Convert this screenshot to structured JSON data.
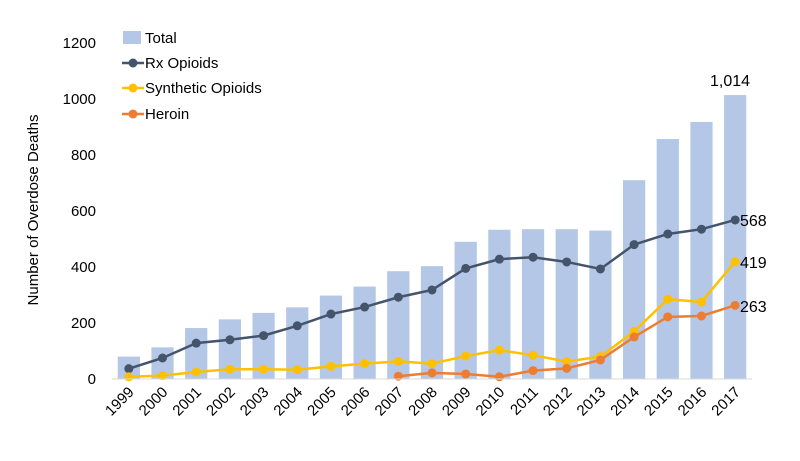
{
  "chart_data": {
    "type": "bar",
    "ylabel": "Number of Overdose Deaths",
    "ylim": [
      0,
      1200
    ],
    "yticks": [
      "0",
      "200",
      "400",
      "600",
      "800",
      "1000",
      "1200"
    ],
    "grid": false,
    "legend_position": "top-left",
    "categories": [
      "1999",
      "2000",
      "2001",
      "2002",
      "2003",
      "2004",
      "2005",
      "2006",
      "2007",
      "2008",
      "2009",
      "2010",
      "2011",
      "2012",
      "2013",
      "2014",
      "2015",
      "2016",
      "2017"
    ],
    "bar_series": {
      "name": "Total",
      "color": "#b4c7e7",
      "values": [
        80,
        113,
        182,
        213,
        236,
        256,
        298,
        330,
        385,
        403,
        490,
        533,
        535,
        535,
        530,
        710,
        857,
        918,
        1014
      ]
    },
    "line_series": [
      {
        "name": "Rx Opioids",
        "color": "#44546a",
        "values": [
          37,
          75,
          128,
          140,
          155,
          190,
          232,
          257,
          292,
          318,
          395,
          428,
          435,
          418,
          393,
          480,
          518,
          535,
          568
        ]
      },
      {
        "name": "Synthetic Opioids",
        "color": "#ffc000",
        "values": [
          8,
          12,
          25,
          35,
          35,
          33,
          45,
          55,
          63,
          55,
          82,
          103,
          85,
          62,
          80,
          170,
          285,
          275,
          419
        ]
      },
      {
        "name": "Heroin",
        "color": "#ed7d31",
        "values": [
          null,
          null,
          null,
          null,
          null,
          null,
          null,
          null,
          10,
          22,
          18,
          8,
          30,
          38,
          68,
          150,
          222,
          225,
          263
        ]
      }
    ],
    "data_labels": {
      "total_2017": "1,014",
      "rx_2017": "568",
      "synthetic_2017": "419",
      "heroin_2017": "263"
    }
  }
}
